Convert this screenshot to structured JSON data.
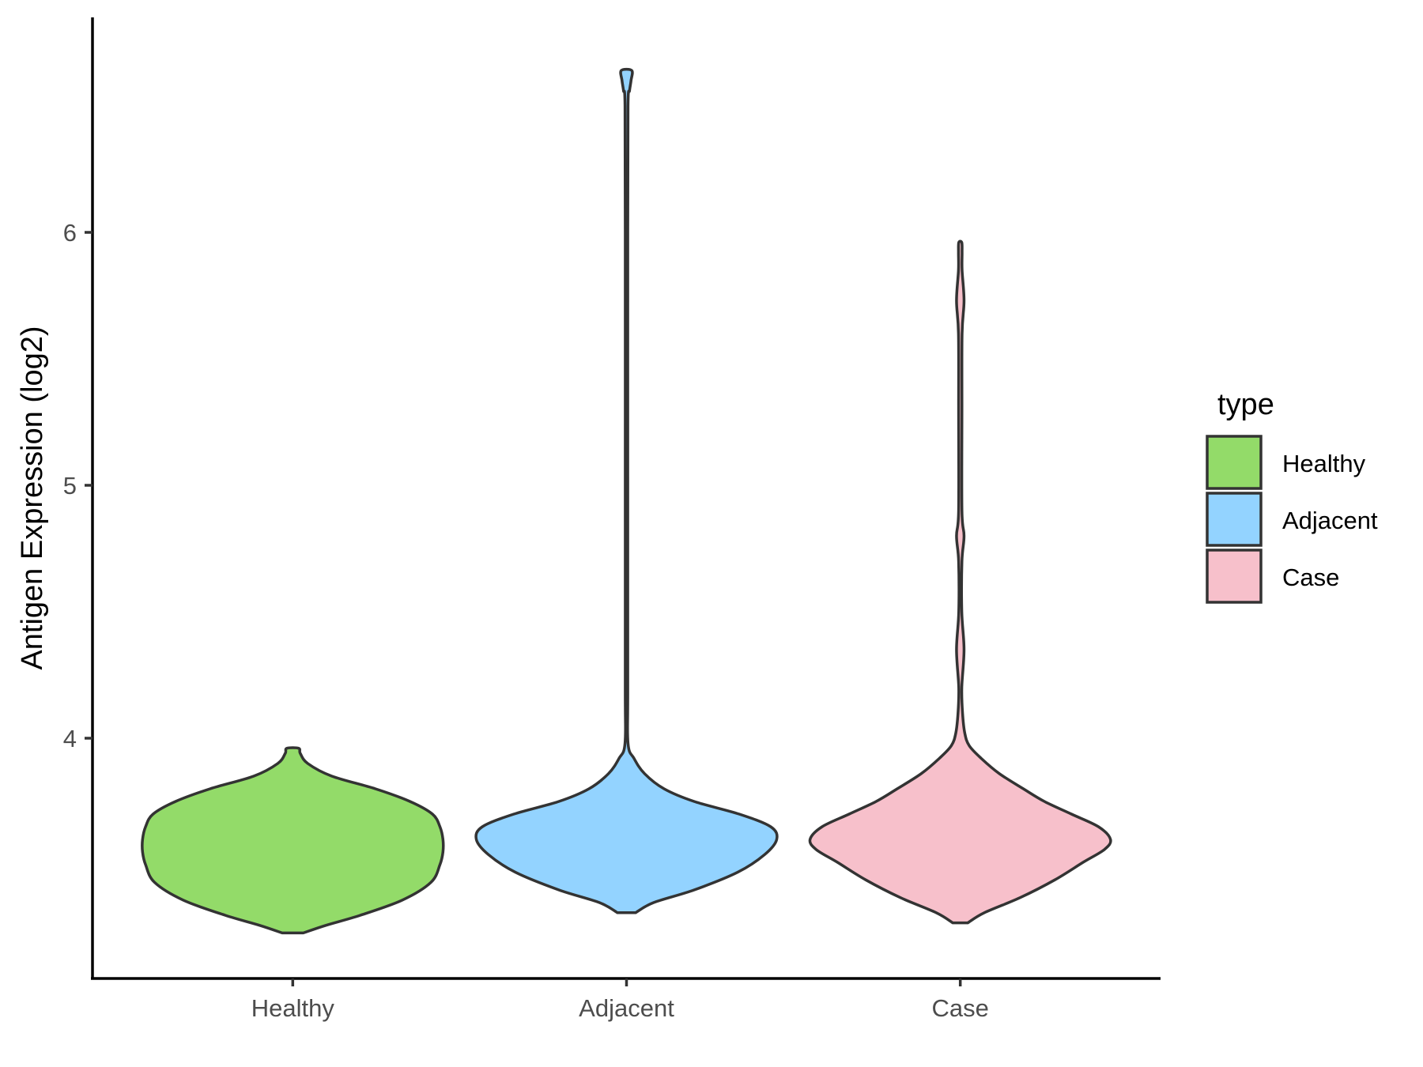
{
  "chart_data": {
    "type": "violin",
    "title": "",
    "xlabel": "",
    "ylabel": "Antigen Expression (log2)",
    "ylim": [
      3.05,
      6.85
    ],
    "yticks": [
      4,
      5,
      6
    ],
    "categories": [
      "Healthy",
      "Adjacent",
      "Case"
    ],
    "grid": false,
    "legend": {
      "title": "type",
      "position": "right",
      "entries": [
        {
          "label": "Healthy",
          "color": "#93db69"
        },
        {
          "label": "Adjacent",
          "color": "#93d3ff"
        },
        {
          "label": "Case",
          "color": "#f7c0cb"
        }
      ]
    },
    "series": [
      {
        "category": "Healthy",
        "color": "#93db69",
        "ymin": 3.23,
        "ymax": 3.96,
        "density_profile": [
          [
            3.23,
            0.07
          ],
          [
            3.26,
            0.22
          ],
          [
            3.3,
            0.45
          ],
          [
            3.36,
            0.73
          ],
          [
            3.43,
            0.92
          ],
          [
            3.5,
            0.98
          ],
          [
            3.55,
            1.0
          ],
          [
            3.6,
            1.0
          ],
          [
            3.65,
            0.98
          ],
          [
            3.7,
            0.93
          ],
          [
            3.75,
            0.78
          ],
          [
            3.8,
            0.55
          ],
          [
            3.85,
            0.26
          ],
          [
            3.9,
            0.1
          ],
          [
            3.94,
            0.05
          ],
          [
            3.96,
            0.04
          ]
        ]
      },
      {
        "category": "Adjacent",
        "color": "#93d3ff",
        "ymin": 3.31,
        "ymax": 6.64,
        "density_profile": [
          [
            3.31,
            0.06
          ],
          [
            3.35,
            0.18
          ],
          [
            3.4,
            0.45
          ],
          [
            3.47,
            0.74
          ],
          [
            3.54,
            0.92
          ],
          [
            3.6,
            1.0
          ],
          [
            3.65,
            0.96
          ],
          [
            3.7,
            0.75
          ],
          [
            3.75,
            0.45
          ],
          [
            3.8,
            0.25
          ],
          [
            3.86,
            0.12
          ],
          [
            3.92,
            0.05
          ],
          [
            3.98,
            0.01
          ],
          [
            4.2,
            0.0083
          ],
          [
            5.0,
            0.0083
          ],
          [
            6.0,
            0.0083
          ],
          [
            6.5,
            0.01
          ],
          [
            6.56,
            0.02
          ],
          [
            6.6,
            0.03
          ],
          [
            6.64,
            0.035
          ]
        ]
      },
      {
        "category": "Case",
        "color": "#f7c0cb",
        "ymin": 3.27,
        "ymax": 5.96,
        "density_profile": [
          [
            3.27,
            0.05
          ],
          [
            3.31,
            0.16
          ],
          [
            3.37,
            0.4
          ],
          [
            3.44,
            0.63
          ],
          [
            3.51,
            0.82
          ],
          [
            3.56,
            0.96
          ],
          [
            3.6,
            1.0
          ],
          [
            3.65,
            0.92
          ],
          [
            3.7,
            0.74
          ],
          [
            3.75,
            0.56
          ],
          [
            3.8,
            0.42
          ],
          [
            3.86,
            0.26
          ],
          [
            3.92,
            0.14
          ],
          [
            3.97,
            0.06
          ],
          [
            4.02,
            0.03
          ],
          [
            4.1,
            0.015
          ],
          [
            4.2,
            0.01
          ],
          [
            4.35,
            0.025
          ],
          [
            4.5,
            0.01
          ],
          [
            4.7,
            0.011
          ],
          [
            4.8,
            0.025
          ],
          [
            4.9,
            0.011
          ],
          [
            5.3,
            0.011
          ],
          [
            5.6,
            0.012
          ],
          [
            5.73,
            0.025
          ],
          [
            5.85,
            0.012
          ],
          [
            5.92,
            0.012
          ],
          [
            5.96,
            0.01
          ]
        ]
      }
    ]
  }
}
